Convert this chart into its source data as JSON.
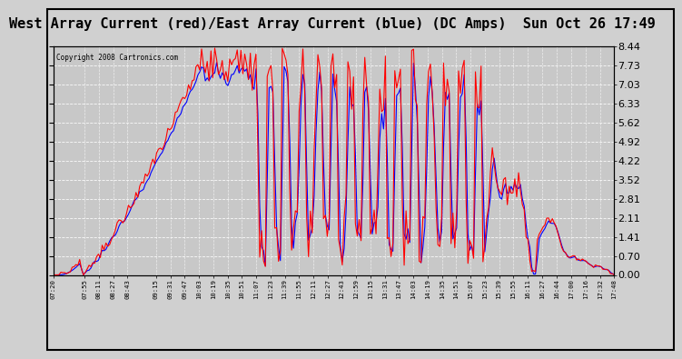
{
  "title": "West Array Current (red)/East Array Current (blue) (DC Amps)  Sun Oct 26 17:49",
  "copyright": "Copyright 2008 Cartronics.com",
  "yticks": [
    0.0,
    0.7,
    1.41,
    2.11,
    2.81,
    3.52,
    4.22,
    4.92,
    5.62,
    6.33,
    7.03,
    7.73,
    8.44
  ],
  "ylim": [
    0.0,
    8.44
  ],
  "bg_color": "#d0d0d0",
  "plot_bg_color": "#c8c8c8",
  "grid_color": "#ffffff",
  "line_red": "#ff0000",
  "line_blue": "#0000ff",
  "title_fontsize": 11,
  "tick_fontsize": 7,
  "xtick_labels": [
    "07:20",
    "07:55",
    "08:11",
    "08:27",
    "08:43",
    "09:15",
    "09:31",
    "09:47",
    "10:03",
    "10:19",
    "10:35",
    "10:51",
    "11:07",
    "11:23",
    "11:39",
    "11:55",
    "12:11",
    "12:27",
    "12:43",
    "12:59",
    "13:15",
    "13:31",
    "13:47",
    "14:03",
    "14:19",
    "14:35",
    "14:51",
    "15:07",
    "15:23",
    "15:39",
    "15:55",
    "16:11",
    "16:27",
    "16:44",
    "17:00",
    "17:16",
    "17:32",
    "17:48"
  ]
}
